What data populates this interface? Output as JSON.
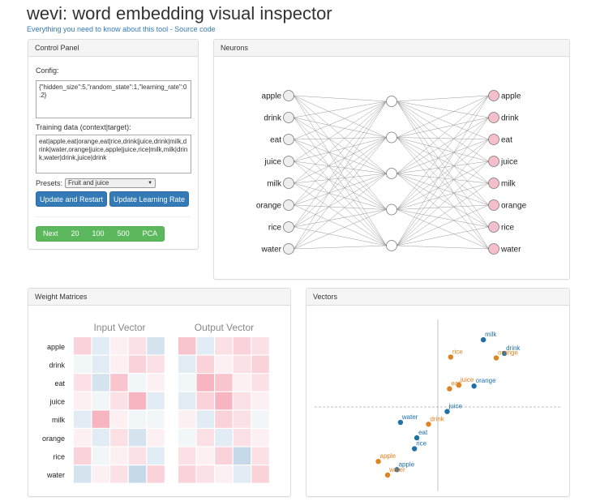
{
  "page": {
    "title": "wevi: word embedding visual inspector",
    "link_about": "Everything you need to know about this tool",
    "link_separator": " - ",
    "link_source": "Source code"
  },
  "control_panel": {
    "heading": "Control Panel",
    "config_label": "Config:",
    "config_value": "{\"hidden_size\":5,\"random_state\":1,\"learning_rate\":0.2}",
    "training_label": "Training data (context|target):",
    "training_value": "eat|apple,eat|orange,eat|rice,drink|juice,drink|milk,drink|water,orange|juice,apple|juice,rice|milk,milk|drink,water|drink,juice|drink",
    "presets_label": "Presets:",
    "preset_selected": "Fruit and juice",
    "update_restart_label": "Update and Restart",
    "update_lr_label": "Update Learning Rate",
    "step_buttons": [
      "Next",
      "20",
      "100",
      "500",
      "PCA"
    ]
  },
  "neurons_panel": {
    "heading": "Neurons",
    "input_words": [
      "apple",
      "drink",
      "eat",
      "juice",
      "milk",
      "orange",
      "rice",
      "water"
    ],
    "output_words": [
      "apple",
      "drink",
      "eat",
      "juice",
      "milk",
      "orange",
      "rice",
      "water"
    ],
    "hidden_count": 5,
    "input_node_color": "#eeeeee",
    "hidden_node_color": "#ffffff",
    "output_node_color": "#f4bfcb"
  },
  "weights_panel": {
    "heading": "Weight Matrices",
    "input_title": "Input Vector",
    "output_title": "Output Vector",
    "row_labels": [
      "apple",
      "drink",
      "eat",
      "juice",
      "milk",
      "orange",
      "rice",
      "water"
    ],
    "input_matrix": [
      [
        0.3,
        -0.2,
        0.1,
        0.2,
        -0.3
      ],
      [
        -0.1,
        -0.2,
        0.1,
        0.3,
        0.2
      ],
      [
        0.2,
        -0.3,
        0.4,
        -0.1,
        0.1
      ],
      [
        0.1,
        -0.1,
        0.2,
        0.5,
        -0.2
      ],
      [
        -0.2,
        0.5,
        0.1,
        -0.1,
        -0.1
      ],
      [
        0.1,
        -0.2,
        0.2,
        -0.3,
        0.1
      ],
      [
        0.3,
        -0.1,
        0.1,
        0.2,
        -0.2
      ],
      [
        -0.3,
        0.1,
        0.2,
        -0.4,
        0.3
      ]
    ],
    "output_matrix": [
      [
        0.4,
        -0.2,
        0.2,
        0.3,
        0.2
      ],
      [
        -0.2,
        0.3,
        0.1,
        0.2,
        0.3
      ],
      [
        -0.1,
        0.5,
        0.4,
        0.1,
        0.2
      ],
      [
        -0.2,
        0.3,
        0.5,
        0.2,
        0.1
      ],
      [
        0.1,
        -0.2,
        0.3,
        0.2,
        -0.1
      ],
      [
        -0.1,
        0.2,
        -0.2,
        0.2,
        0.1
      ],
      [
        0.2,
        0.1,
        0.3,
        -0.4,
        0.2
      ],
      [
        0.3,
        0.2,
        0.1,
        -0.2,
        0.3
      ]
    ],
    "positive_color": "#f4a6b4",
    "negative_color": "#a9c6dd"
  },
  "vectors_panel": {
    "heading": "Vectors",
    "input_color": "#1f6fa8",
    "output_color": "#e0821e",
    "chart_data": {
      "type": "scatter",
      "xlim": [
        -1,
        1
      ],
      "ylim": [
        -1,
        1
      ],
      "series": [
        {
          "points": [
            {
              "label": "milk",
              "x": 0.39,
              "y": 0.74
            },
            {
              "label": "drink",
              "x": 0.57,
              "y": 0.59
            },
            {
              "label": "orange",
              "x": 0.31,
              "y": 0.23
            },
            {
              "label": "juice",
              "x": 0.08,
              "y": -0.05
            },
            {
              "label": "water",
              "x": -0.32,
              "y": -0.17
            },
            {
              "label": "eat",
              "x": -0.18,
              "y": -0.34
            },
            {
              "label": "rice",
              "x": -0.2,
              "y": -0.46
            },
            {
              "label": "apple",
              "x": -0.35,
              "y": -0.69
            }
          ]
        },
        {
          "points": [
            {
              "label": "rice",
              "x": 0.11,
              "y": 0.55
            },
            {
              "label": "orange",
              "x": 0.5,
              "y": 0.54
            },
            {
              "label": "juice",
              "x": 0.18,
              "y": 0.24
            },
            {
              "label": "eat",
              "x": 0.1,
              "y": 0.2
            },
            {
              "label": "drink",
              "x": -0.08,
              "y": -0.19
            },
            {
              "label": "apple",
              "x": -0.51,
              "y": -0.6
            },
            {
              "label": "water",
              "x": -0.43,
              "y": -0.75
            }
          ]
        }
      ]
    }
  }
}
